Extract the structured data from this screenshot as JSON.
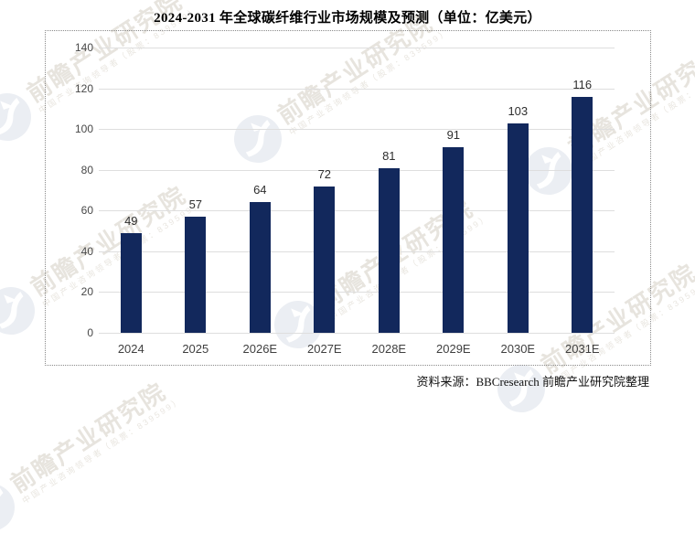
{
  "header": {
    "title": "2024-2031 年全球碳纤维行业市场规模及预测（单位：亿美元）"
  },
  "footer": {
    "source": "资料来源：BBCresearch 前瞻产业研究院整理"
  },
  "watermark": {
    "brand_text": "前瞻产业研究院",
    "tagline_text": "中国产业咨询领导者（股票：839599）"
  },
  "colors": {
    "bar": "#12285c",
    "gridline": "#dedede",
    "axis_label": "#474747",
    "box_border": "#8a8a8a",
    "watermark_text": "#e7e4de",
    "watermark_logo": "#ebeef3"
  },
  "chart_data": {
    "type": "bar",
    "title": "2024-2031 年全球碳纤维行业市场规模及预测",
    "unit": "亿美元",
    "categories": [
      "2024",
      "2025",
      "2026E",
      "2027E",
      "2028E",
      "2029E",
      "2030E",
      "2031E"
    ],
    "values": [
      49,
      57,
      64,
      72,
      81,
      91,
      103,
      116
    ],
    "xlabel": "",
    "ylabel": "",
    "ylim": [
      0,
      140
    ],
    "ytick_step": 20,
    "grid": true,
    "legend": false,
    "value_labels": true,
    "bar_color": "#12285c"
  }
}
